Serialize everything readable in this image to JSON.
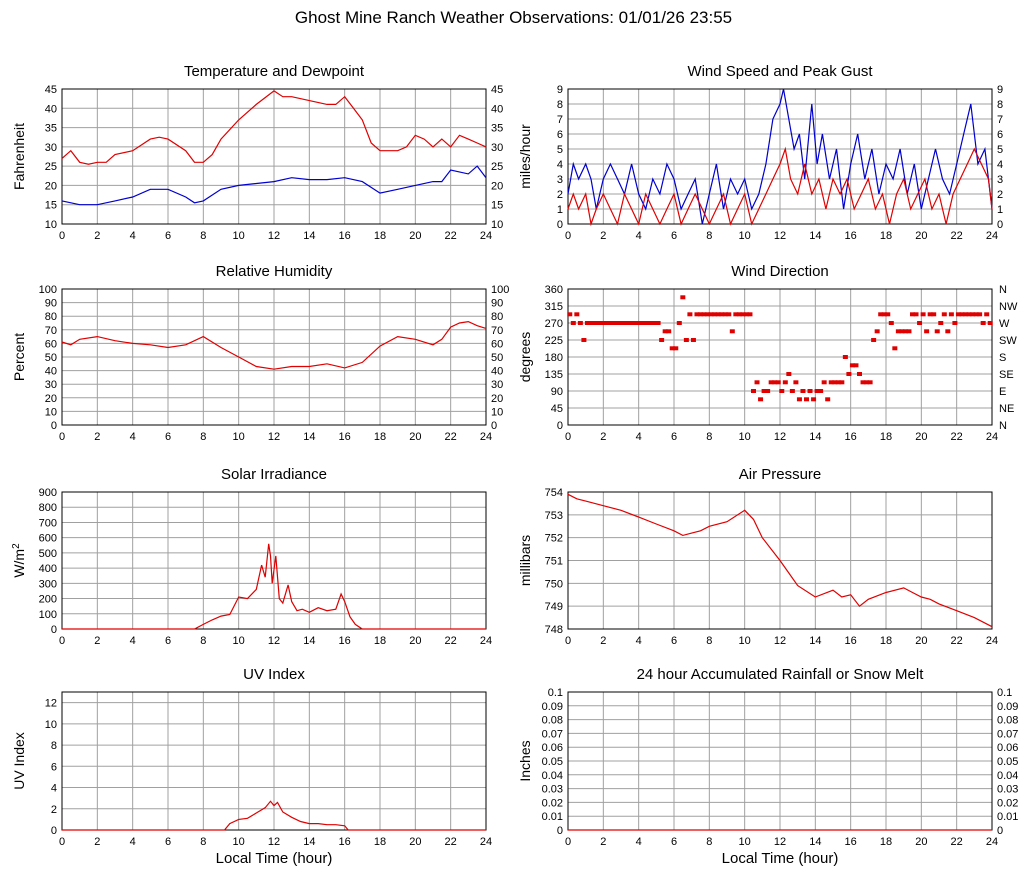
{
  "page": {
    "title": "Ghost Mine Ranch Weather Observations: 01/01/26 23:55"
  },
  "colors": {
    "red": "#e00000",
    "blue": "#0000d0",
    "grid": "#a0a0a0"
  },
  "chart_data": [
    {
      "id": "temp",
      "type": "line",
      "title": "Temperature and Dewpoint",
      "ylabel": "Fahrenheit",
      "xlabel": "",
      "xlim": [
        0,
        24
      ],
      "ylim": [
        10,
        45
      ],
      "yticks": [
        10,
        15,
        20,
        25,
        30,
        35,
        40,
        45
      ],
      "right_axis": true,
      "grid": true,
      "series": [
        {
          "color": "red",
          "x": [
            0,
            0.5,
            1,
            1.5,
            2,
            2.5,
            3,
            4,
            5,
            5.5,
            6,
            7,
            7.5,
            8,
            8.5,
            9,
            10,
            11,
            12,
            12.5,
            13,
            14,
            15,
            15.5,
            16,
            16.5,
            17,
            17.5,
            18,
            19,
            19.5,
            20,
            20.5,
            21,
            21.5,
            22,
            22.5,
            23,
            23.5,
            24
          ],
          "y": [
            27,
            29,
            26,
            25.5,
            26,
            26,
            28,
            29,
            32,
            32.5,
            32,
            29,
            26,
            26,
            28,
            32,
            37,
            41,
            44.5,
            43,
            43,
            42,
            41,
            41,
            43,
            40,
            37,
            31,
            29,
            29,
            30,
            33,
            32,
            30,
            32,
            30,
            33,
            32,
            31,
            30
          ]
        },
        {
          "color": "blue",
          "x": [
            0,
            1,
            2,
            3,
            4,
            5,
            6,
            7,
            7.5,
            8,
            9,
            10,
            11,
            12,
            13,
            14,
            15,
            16,
            17,
            18,
            19,
            20,
            21,
            21.5,
            22,
            23,
            23.5,
            24
          ],
          "y": [
            16,
            15,
            15,
            16,
            17,
            19,
            19,
            17,
            15.5,
            16,
            19,
            20,
            20.5,
            21,
            22,
            21.5,
            21.5,
            22,
            21,
            18,
            19,
            20,
            21,
            21,
            24,
            23,
            25,
            22
          ]
        }
      ]
    },
    {
      "id": "wind",
      "type": "line",
      "title": "Wind Speed and Peak Gust",
      "ylabel": "miles/hour",
      "xlabel": "",
      "xlim": [
        0,
        24
      ],
      "ylim": [
        0,
        9
      ],
      "yticks": [
        0,
        1,
        2,
        3,
        4,
        5,
        6,
        7,
        8,
        9
      ],
      "right_axis": true,
      "grid": true,
      "series": [
        {
          "color": "blue",
          "x": [
            0,
            0.3,
            0.6,
            1,
            1.3,
            1.6,
            2,
            2.4,
            2.8,
            3.2,
            3.6,
            4,
            4.4,
            4.8,
            5.2,
            5.6,
            6,
            6.4,
            6.8,
            7.2,
            7.6,
            8,
            8.4,
            8.8,
            9.2,
            9.6,
            10,
            10.4,
            10.8,
            11.2,
            11.6,
            12,
            12.2,
            12.5,
            12.8,
            13.1,
            13.4,
            13.8,
            14.1,
            14.4,
            14.8,
            15.2,
            15.6,
            16,
            16.4,
            16.8,
            17.2,
            17.6,
            18,
            18.4,
            18.8,
            19.2,
            19.6,
            20,
            20.4,
            20.8,
            21.2,
            21.6,
            22,
            22.4,
            22.8,
            23.2,
            23.6,
            24
          ],
          "y": [
            2,
            4,
            3,
            4,
            3,
            1,
            3,
            4,
            3,
            2,
            4,
            2,
            1,
            3,
            2,
            4,
            3,
            1,
            2,
            3,
            0,
            2,
            4,
            1,
            3,
            2,
            3,
            1,
            2,
            4,
            7,
            8,
            9,
            7,
            5,
            6,
            3,
            8,
            4,
            6,
            3,
            5,
            1,
            4,
            6,
            3,
            5,
            2,
            4,
            3,
            5,
            2,
            4,
            1,
            3,
            5,
            3,
            2,
            4,
            6,
            8,
            4,
            5,
            1
          ]
        },
        {
          "color": "red",
          "x": [
            0,
            0.3,
            0.6,
            1,
            1.3,
            1.6,
            2,
            2.4,
            2.8,
            3.2,
            3.6,
            4,
            4.4,
            4.8,
            5.2,
            5.6,
            6,
            6.4,
            6.8,
            7.2,
            7.6,
            8,
            8.4,
            8.8,
            9.2,
            9.6,
            10,
            10.4,
            10.8,
            11.2,
            11.6,
            12,
            12.3,
            12.6,
            13,
            13.4,
            13.8,
            14.2,
            14.6,
            15,
            15.4,
            15.8,
            16.2,
            16.6,
            17,
            17.4,
            17.8,
            18.2,
            18.6,
            19,
            19.4,
            19.8,
            20.2,
            20.6,
            21,
            21.4,
            21.8,
            22.2,
            22.6,
            23,
            23.4,
            23.8,
            24
          ],
          "y": [
            1,
            2,
            1,
            2,
            0,
            1,
            2,
            1,
            0,
            2,
            1,
            0,
            2,
            1,
            0,
            1,
            2,
            0,
            1,
            2,
            1,
            0,
            1,
            2,
            0,
            1,
            2,
            0,
            1,
            2,
            3,
            4,
            5,
            3,
            2,
            4,
            2,
            3,
            1,
            3,
            2,
            3,
            1,
            2,
            3,
            1,
            2,
            0,
            2,
            3,
            1,
            2,
            3,
            1,
            2,
            0,
            2,
            3,
            4,
            5,
            4,
            3,
            1
          ]
        }
      ]
    },
    {
      "id": "rh",
      "type": "line",
      "title": "Relative Humidity",
      "ylabel": "Percent",
      "xlabel": "",
      "xlim": [
        0,
        24
      ],
      "ylim": [
        0,
        100
      ],
      "yticks": [
        0,
        10,
        20,
        30,
        40,
        50,
        60,
        70,
        80,
        90,
        100
      ],
      "right_axis": true,
      "grid": true,
      "series": [
        {
          "color": "red",
          "x": [
            0,
            0.5,
            1,
            2,
            3,
            4,
            5,
            6,
            7,
            8,
            9,
            10,
            11,
            12,
            13,
            14,
            15,
            16,
            17,
            18,
            19,
            20,
            21,
            21.5,
            22,
            22.5,
            23,
            23.5,
            24
          ],
          "y": [
            61,
            59,
            63,
            65,
            62,
            60,
            59,
            57,
            59,
            65,
            57,
            50,
            43,
            41,
            43,
            43,
            45,
            42,
            46,
            58,
            65,
            63,
            59,
            63,
            72,
            75,
            76,
            73,
            71
          ]
        }
      ]
    },
    {
      "id": "wdir",
      "type": "scatter",
      "title": "Wind Direction",
      "ylabel": "degrees",
      "xlabel": "",
      "xlim": [
        0,
        24
      ],
      "ylim": [
        0,
        360
      ],
      "yticks": [
        0,
        45,
        90,
        135,
        180,
        225,
        270,
        315,
        360
      ],
      "right_labels": [
        "N",
        "NE",
        "E",
        "SE",
        "S",
        "SW",
        "W",
        "NW",
        "N"
      ],
      "right_label_values": [
        0,
        45,
        90,
        135,
        180,
        225,
        270,
        315,
        360
      ],
      "grid": true,
      "series": [
        {
          "color": "red",
          "x": [
            0.1,
            0.3,
            0.5,
            0.7,
            0.9,
            1.1,
            1.3,
            1.5,
            1.7,
            1.9,
            2.1,
            2.3,
            2.5,
            2.7,
            2.9,
            3.1,
            3.3,
            3.5,
            3.7,
            3.9,
            4.1,
            4.3,
            4.5,
            4.7,
            4.9,
            5.1,
            5.3,
            5.5,
            5.7,
            5.9,
            6.1,
            6.3,
            6.5,
            6.7,
            6.9,
            7.1,
            7.3,
            7.5,
            7.7,
            7.9,
            8.1,
            8.3,
            8.5,
            8.7,
            8.9,
            9.1,
            9.3,
            9.5,
            9.7,
            9.9,
            10.1,
            10.3,
            10.5,
            10.7,
            10.9,
            11.1,
            11.3,
            11.5,
            11.7,
            11.9,
            12.1,
            12.3,
            12.5,
            12.7,
            12.9,
            13.1,
            13.3,
            13.5,
            13.7,
            13.9,
            14.1,
            14.3,
            14.5,
            14.7,
            14.9,
            15.1,
            15.3,
            15.5,
            15.7,
            15.9,
            16.1,
            16.3,
            16.5,
            16.7,
            16.9,
            17.1,
            17.3,
            17.5,
            17.7,
            17.9,
            18.1,
            18.3,
            18.5,
            18.7,
            18.9,
            19.1,
            19.3,
            19.5,
            19.7,
            19.9,
            20.1,
            20.3,
            20.5,
            20.7,
            20.9,
            21.1,
            21.3,
            21.5,
            21.7,
            21.9,
            22.1,
            22.3,
            22.5,
            22.7,
            22.9,
            23.1,
            23.3,
            23.5,
            23.7,
            23.9
          ],
          "y": [
            293,
            270,
            293,
            270,
            225,
            270,
            270,
            270,
            270,
            270,
            270,
            270,
            270,
            270,
            270,
            270,
            270,
            270,
            270,
            270,
            270,
            270,
            270,
            270,
            270,
            270,
            225,
            248,
            248,
            203,
            203,
            270,
            338,
            225,
            293,
            225,
            293,
            293,
            293,
            293,
            293,
            293,
            293,
            293,
            293,
            293,
            248,
            293,
            293,
            293,
            293,
            293,
            90,
            113,
            68,
            90,
            90,
            113,
            113,
            113,
            90,
            113,
            135,
            90,
            113,
            68,
            90,
            68,
            90,
            68,
            90,
            90,
            113,
            68,
            113,
            113,
            113,
            113,
            180,
            135,
            158,
            158,
            135,
            113,
            113,
            113,
            225,
            248,
            293,
            293,
            293,
            270,
            203,
            248,
            248,
            248,
            248,
            293,
            293,
            270,
            293,
            248,
            293,
            293,
            248,
            270,
            293,
            248,
            293,
            270,
            293,
            293,
            293,
            293,
            293,
            293,
            293,
            270,
            293,
            270
          ]
        }
      ]
    },
    {
      "id": "solar",
      "type": "line",
      "title": "Solar Irradiance",
      "ylabel": "W/m2",
      "xlabel": "",
      "xlim": [
        0,
        24
      ],
      "ylim": [
        0,
        900
      ],
      "yticks": [
        0,
        100,
        200,
        300,
        400,
        500,
        600,
        700,
        800,
        900
      ],
      "right_axis": false,
      "grid": true,
      "series": [
        {
          "color": "red",
          "x": [
            0,
            7.5,
            8,
            8.5,
            9,
            9.5,
            10,
            10.5,
            11,
            11.3,
            11.5,
            11.7,
            11.8,
            11.9,
            12.1,
            12.3,
            12.5,
            12.8,
            13,
            13.3,
            13.6,
            14,
            14.5,
            15,
            15.5,
            15.8,
            16,
            16.3,
            16.6,
            17,
            24
          ],
          "y": [
            0,
            0,
            30,
            60,
            85,
            95,
            210,
            200,
            260,
            420,
            340,
            560,
            480,
            300,
            480,
            200,
            170,
            290,
            180,
            120,
            130,
            110,
            140,
            120,
            130,
            230,
            180,
            80,
            30,
            0,
            0
          ]
        }
      ]
    },
    {
      "id": "pressure",
      "type": "line",
      "title": "Air Pressure",
      "ylabel": "millibars",
      "xlabel": "",
      "xlim": [
        0,
        24
      ],
      "ylim": [
        748,
        754
      ],
      "yticks": [
        748,
        749,
        750,
        751,
        752,
        753,
        754
      ],
      "right_axis": false,
      "grid": true,
      "series": [
        {
          "color": "red",
          "x": [
            0,
            0.5,
            1,
            2,
            3,
            4,
            5,
            6,
            6.5,
            7,
            7.5,
            8,
            9,
            10,
            10.5,
            11,
            12,
            13,
            14,
            15,
            15.5,
            16,
            16.5,
            17,
            18,
            19,
            19.5,
            20,
            20.5,
            21,
            22,
            23,
            24
          ],
          "y": [
            753.9,
            753.7,
            753.6,
            753.4,
            753.2,
            752.9,
            752.6,
            752.3,
            752.1,
            752.2,
            752.3,
            752.5,
            752.7,
            753.2,
            752.8,
            752.0,
            751.0,
            749.9,
            749.4,
            749.7,
            749.4,
            749.5,
            749.0,
            749.3,
            749.6,
            749.8,
            749.6,
            749.4,
            749.3,
            749.1,
            748.8,
            748.5,
            748.1
          ]
        }
      ]
    },
    {
      "id": "uv",
      "type": "line",
      "title": "UV Index",
      "ylabel": "UV Index",
      "xlabel": "Local Time (hour)",
      "xlim": [
        0,
        24
      ],
      "ylim": [
        0,
        13
      ],
      "yticks": [
        0,
        2,
        4,
        6,
        8,
        10,
        12
      ],
      "right_axis": false,
      "grid": true,
      "series": [
        {
          "color": "red",
          "x": [
            0,
            9.2,
            9.5,
            10,
            10.5,
            11,
            11.5,
            11.8,
            12,
            12.2,
            12.5,
            13,
            13.5,
            14,
            14.5,
            15,
            15.5,
            16,
            16.2,
            24
          ],
          "y": [
            0,
            0,
            0.6,
            1.0,
            1.1,
            1.6,
            2.1,
            2.7,
            2.3,
            2.6,
            1.7,
            1.2,
            0.8,
            0.6,
            0.6,
            0.5,
            0.5,
            0.4,
            0,
            0
          ]
        }
      ]
    },
    {
      "id": "rain",
      "type": "line",
      "title": "24 hour Accumulated Rainfall or Snow Melt",
      "ylabel": "Inches",
      "xlabel": "Local Time (hour)",
      "xlim": [
        0,
        24
      ],
      "ylim": [
        0,
        0.1
      ],
      "yticks": [
        0,
        0.01,
        0.02,
        0.03,
        0.04,
        0.05,
        0.06,
        0.07,
        0.08,
        0.09,
        0.1
      ],
      "right_axis": true,
      "grid": true,
      "series": [
        {
          "color": "red",
          "x": [
            0,
            24
          ],
          "y": [
            0,
            0
          ]
        }
      ]
    }
  ]
}
